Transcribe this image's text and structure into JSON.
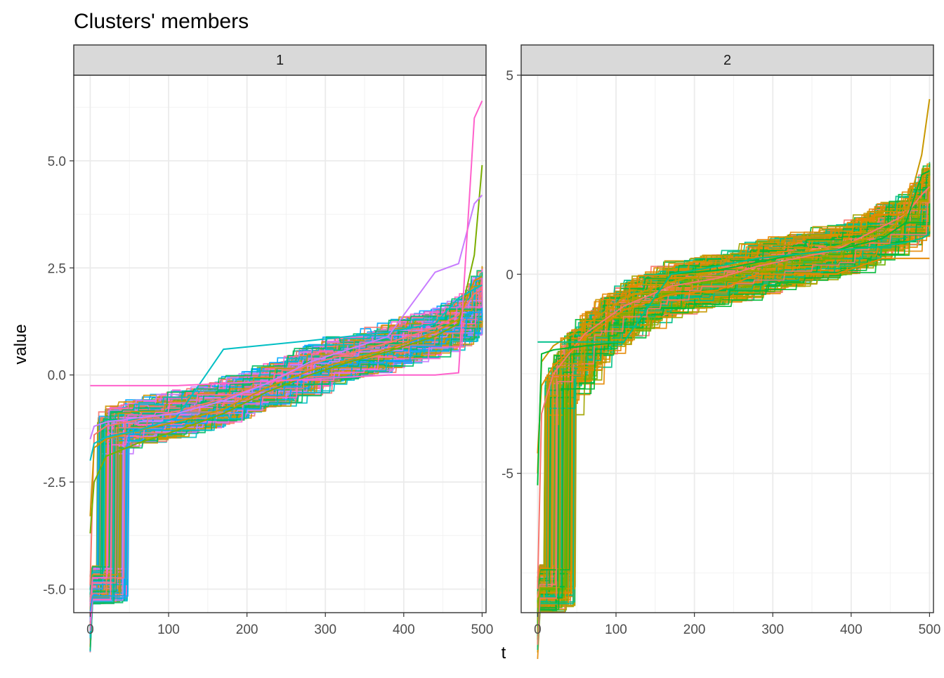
{
  "chart_data": {
    "type": "line",
    "title": "Clusters' members",
    "xlabel": "t",
    "ylabel": "value",
    "facets": [
      {
        "label": "1",
        "xlim": [
          -21,
          505
        ],
        "ylim": [
          -5.55,
          7.0
        ],
        "x_ticks": [
          0,
          100,
          200,
          300,
          400,
          500
        ],
        "y_ticks": [
          -5.0,
          -2.5,
          0.0,
          2.5,
          5.0
        ],
        "y_tick_labels": [
          "-5.0",
          "-2.5",
          "0.0",
          "2.5",
          "5.0"
        ],
        "palette": [
          "#F8766D",
          "#CD9600",
          "#7CAE00",
          "#00BE67",
          "#00BFC4",
          "#00A9FF",
          "#C77CFF",
          "#FF61CC"
        ],
        "n_lines": 220,
        "series": [
          {
            "name": "",
            "color": "#F8766D",
            "x": [
              0,
              5,
              20,
              60,
              110,
              170,
              225,
              280,
              330,
              380,
              440,
              470,
              490,
              500
            ],
            "y": [
              -4.9,
              -1.4,
              -1.2,
              -1.05,
              -0.85,
              -0.55,
              -0.2,
              0.25,
              0.5,
              0.75,
              1.1,
              1.4,
              1.9,
              2.0
            ]
          },
          {
            "name": "",
            "color": "#CD9600",
            "x": [
              0,
              5,
              20,
              60,
              110,
              170,
              225,
              280,
              330,
              380,
              440,
              470,
              490,
              500
            ],
            "y": [
              -3.3,
              -1.7,
              -1.5,
              -1.3,
              -1.1,
              -0.8,
              -0.3,
              0.1,
              0.35,
              0.6,
              1.0,
              1.3,
              2.2,
              2.3
            ]
          },
          {
            "name": "",
            "color": "#7CAE00",
            "x": [
              0,
              5,
              20,
              60,
              110,
              170,
              225,
              280,
              330,
              380,
              440,
              470,
              490,
              500
            ],
            "y": [
              -3.7,
              -2.5,
              -1.9,
              -1.6,
              -1.3,
              -0.9,
              -0.4,
              0.0,
              0.3,
              0.55,
              0.9,
              1.2,
              2.8,
              4.9
            ]
          },
          {
            "name": "",
            "color": "#00BFC4",
            "x": [
              0,
              5,
              20,
              60,
              110,
              170,
              225,
              280,
              330,
              380,
              440,
              470,
              490,
              500
            ],
            "y": [
              -2.0,
              -1.6,
              -1.45,
              -1.3,
              -1.0,
              0.6,
              0.7,
              0.8,
              0.9,
              1.0,
              1.2,
              1.8,
              2.0,
              2.1
            ]
          },
          {
            "name": "",
            "color": "#C77CFF",
            "x": [
              0,
              5,
              20,
              60,
              110,
              170,
              225,
              280,
              330,
              380,
              440,
              470,
              490,
              500
            ],
            "y": [
              -1.5,
              -1.2,
              -1.1,
              -1.0,
              -0.9,
              -0.6,
              -0.2,
              0.3,
              0.6,
              0.9,
              2.4,
              2.6,
              4.0,
              4.2
            ]
          },
          {
            "name": "",
            "color": "#FF61CC",
            "x": [
              0,
              5,
              20,
              60,
              110,
              170,
              225,
              280,
              330,
              380,
              440,
              470,
              490,
              500
            ],
            "y": [
              -0.25,
              -0.25,
              -0.25,
              -0.25,
              -0.25,
              -0.2,
              -0.15,
              -0.1,
              -0.05,
              0.0,
              0.0,
              0.05,
              6.0,
              6.4
            ]
          }
        ]
      },
      {
        "label": "2",
        "xlim": [
          -21,
          505
        ],
        "ylim": [
          -8.5,
          5.0
        ],
        "x_ticks": [
          0,
          100,
          200,
          300,
          400,
          500
        ],
        "y_ticks": [
          -5,
          0,
          5
        ],
        "y_tick_labels": [
          "-5",
          "0",
          "5"
        ],
        "palette": [
          "#F8766D",
          "#E58700",
          "#C99800",
          "#A3A500",
          "#6BB100",
          "#00BA38",
          "#00C08B"
        ],
        "n_lines": 180,
        "series": [
          {
            "name": "",
            "color": "#F8766D",
            "x": [
              0,
              5,
              20,
              60,
              110,
              170,
              230,
              280,
              330,
              380,
              440,
              470,
              490,
              500
            ],
            "y": [
              -7.9,
              -3.5,
              -2.5,
              -1.5,
              -0.8,
              -0.3,
              -0.1,
              0.2,
              0.4,
              0.6,
              1.2,
              1.5,
              2.0,
              2.2
            ]
          },
          {
            "name": "",
            "color": "#E58700",
            "x": [
              0,
              5,
              20,
              60,
              110,
              170,
              230,
              280,
              330,
              380,
              440,
              470,
              490,
              500
            ],
            "y": [
              -4.5,
              -2.8,
              -2.3,
              -1.6,
              -0.9,
              -0.5,
              -0.4,
              0.0,
              0.0,
              0.0,
              0.4,
              0.4,
              0.4,
              0.4
            ]
          },
          {
            "name": "",
            "color": "#C99800",
            "x": [
              0,
              5,
              20,
              60,
              110,
              170,
              230,
              280,
              330,
              380,
              440,
              470,
              490,
              500
            ],
            "y": [
              -5.0,
              -2.2,
              -1.8,
              -1.3,
              -0.6,
              -0.2,
              0.1,
              0.3,
              0.5,
              0.7,
              1.0,
              1.5,
              3.0,
              4.4
            ]
          },
          {
            "name": "",
            "color": "#00BA38",
            "x": [
              0,
              5,
              20,
              60,
              110,
              170,
              230,
              280,
              330,
              380,
              440,
              470,
              490,
              500
            ],
            "y": [
              -5.3,
              -2.0,
              -1.9,
              -1.8,
              -1.7,
              0.0,
              0.1,
              0.3,
              0.5,
              0.6,
              0.9,
              1.3,
              2.5,
              2.6
            ]
          },
          {
            "name": "",
            "color": "#00C08B",
            "x": [
              0,
              5,
              20,
              60,
              110,
              170,
              230,
              280,
              330,
              380,
              440,
              470,
              490,
              500
            ],
            "y": [
              -1.7,
              -1.7,
              -1.7,
              -1.7,
              -1.7,
              0.0,
              0.2,
              0.4,
              0.5,
              0.6,
              0.7,
              0.8,
              0.9,
              1.0
            ]
          }
        ]
      }
    ]
  }
}
